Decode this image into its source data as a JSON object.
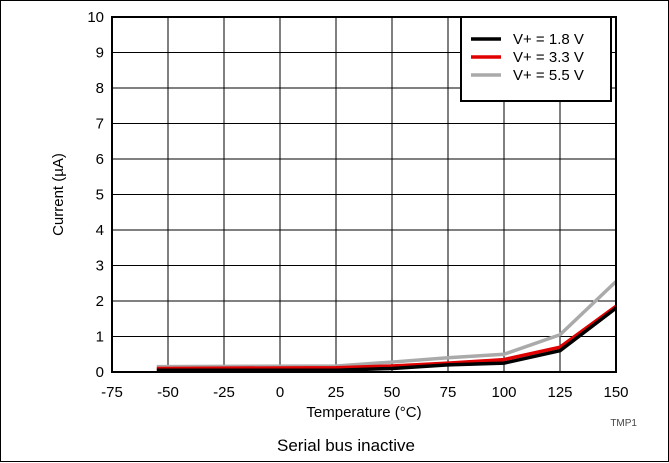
{
  "chart_data": {
    "type": "line",
    "title": "",
    "caption": "Serial bus inactive",
    "figure_id": "TMP1",
    "xlabel": "Temperature (°C)",
    "ylabel": "Current (µA)",
    "xlim": [
      -75,
      150
    ],
    "ylim": [
      0,
      10
    ],
    "xticks": [
      -75,
      -50,
      -25,
      0,
      25,
      50,
      75,
      100,
      125,
      150
    ],
    "yticks": [
      0,
      1,
      2,
      3,
      4,
      5,
      6,
      7,
      8,
      9,
      10
    ],
    "grid": true,
    "legend_position": "top-right",
    "x": [
      -55,
      25,
      50,
      75,
      100,
      125,
      150
    ],
    "series": [
      {
        "name": "V+ = 1.8 V",
        "color": "#000000",
        "values": [
          0.05,
          0.05,
          0.1,
          0.2,
          0.25,
          0.6,
          1.8
        ]
      },
      {
        "name": "V+ = 3.3 V",
        "color": "#e00000",
        "values": [
          0.1,
          0.12,
          0.17,
          0.25,
          0.35,
          0.7,
          1.85
        ]
      },
      {
        "name": "V+ = 5.5 V",
        "color": "#aaaaaa",
        "values": [
          0.15,
          0.17,
          0.28,
          0.4,
          0.5,
          1.05,
          2.55
        ]
      }
    ]
  }
}
